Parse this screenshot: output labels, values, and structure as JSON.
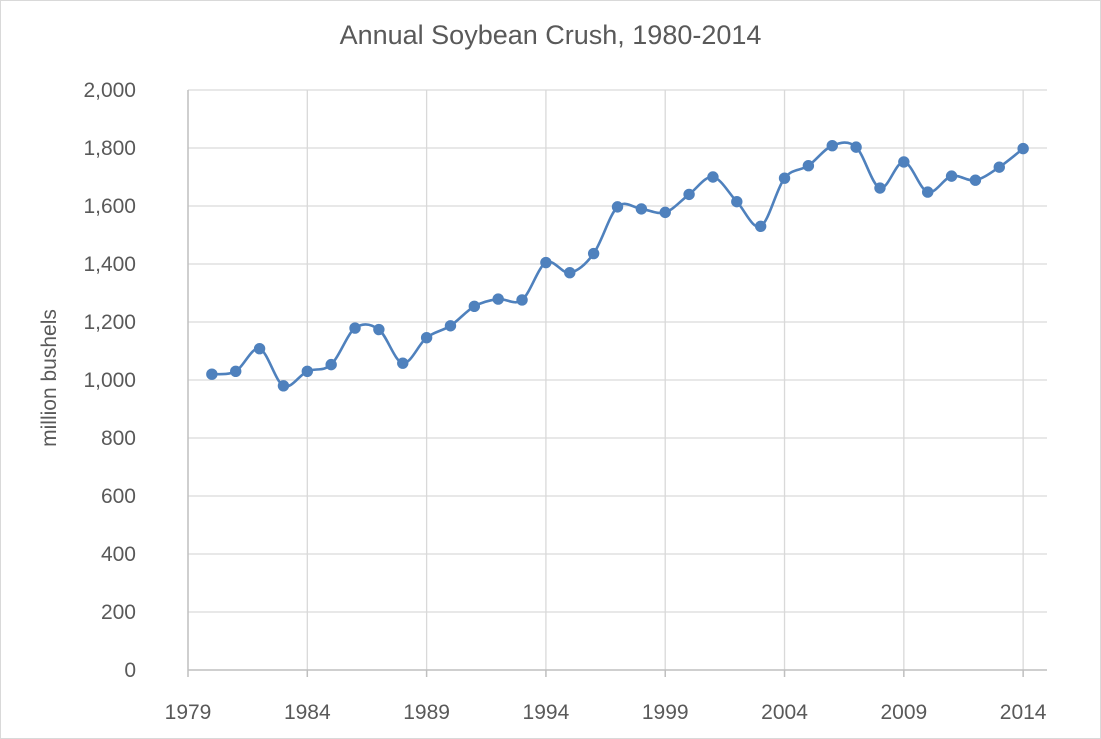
{
  "chart_data": {
    "type": "line",
    "title": "Annual Soybean Crush, 1980-2014",
    "ylabel": "million bushels",
    "xlabel": "",
    "xlim": [
      1979,
      2015
    ],
    "ylim": [
      0,
      2000
    ],
    "x_ticks": [
      1979,
      1984,
      1989,
      1994,
      1999,
      2004,
      2009,
      2014
    ],
    "y_ticks": [
      0,
      200,
      400,
      600,
      800,
      1000,
      1200,
      1400,
      1600,
      1800,
      2000
    ],
    "y_tick_labels": [
      "0",
      "200",
      "400",
      "600",
      "800",
      "1,000",
      "1,200",
      "1,400",
      "1,600",
      "1,800",
      "2,000"
    ],
    "grid": true,
    "legend": "none",
    "series": [
      {
        "color": "#4f81bd",
        "marker": "circle",
        "smooth": true,
        "x": [
          1980,
          1981,
          1982,
          1983,
          1984,
          1985,
          1986,
          1987,
          1988,
          1989,
          1990,
          1991,
          1992,
          1993,
          1994,
          1995,
          1996,
          1997,
          1998,
          1999,
          2000,
          2001,
          2002,
          2003,
          2004,
          2005,
          2006,
          2007,
          2008,
          2009,
          2010,
          2011,
          2012,
          2013,
          2014
        ],
        "values": [
          1020,
          1030,
          1108,
          980,
          1030,
          1053,
          1179,
          1174,
          1058,
          1146,
          1187,
          1254,
          1279,
          1276,
          1405,
          1370,
          1436,
          1597,
          1590,
          1578,
          1640,
          1700,
          1615,
          1530,
          1696,
          1739,
          1808,
          1803,
          1662,
          1752,
          1648,
          1703,
          1689,
          1734,
          1798
        ]
      }
    ]
  }
}
